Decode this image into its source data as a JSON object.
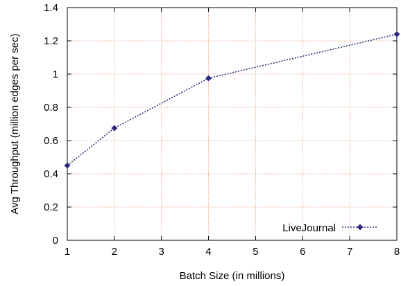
{
  "chart_data": {
    "type": "line",
    "title": "",
    "xlabel": "Batch Size (in millions)",
    "ylabel": "Avg Throughput (million edges per sec)",
    "xlim": [
      1,
      8
    ],
    "ylim": [
      0,
      1.4
    ],
    "x_ticks": [
      "1",
      "2",
      "3",
      "4",
      "5",
      "6",
      "7",
      "8"
    ],
    "y_ticks": [
      "0",
      "0.2",
      "0.4",
      "0.6",
      "0.8",
      "1",
      "1.2",
      "1.4"
    ],
    "grid": true,
    "legend_position": "bottom-right",
    "series": [
      {
        "name": "LiveJournal",
        "x": [
          1,
          2,
          4,
          8
        ],
        "y": [
          0.45,
          0.675,
          0.975,
          1.24
        ]
      }
    ],
    "colors": {
      "series": "#2e2a7a",
      "grid": "#e8916b",
      "axis": "#000000"
    }
  }
}
